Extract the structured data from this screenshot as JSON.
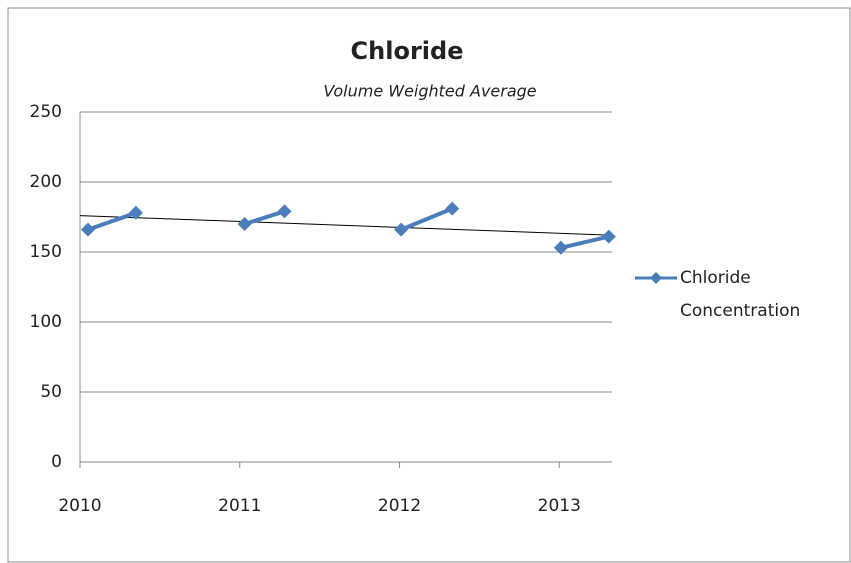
{
  "chart_data": {
    "type": "line",
    "title": "Chloride",
    "subtitle": "Volume Weighted Average",
    "x": [
      2010.05,
      2010.35,
      null,
      2011.03,
      2011.28,
      null,
      2012.01,
      2012.33,
      null,
      2013.01,
      2013.31
    ],
    "xlim": [
      2010,
      2013.33
    ],
    "xticks": [
      2010,
      2011,
      2012,
      2013
    ],
    "series": [
      {
        "name": "Chloride Concentration",
        "color": "#4a7ebb",
        "values": [
          166,
          178,
          null,
          170,
          179,
          null,
          166,
          181,
          null,
          153,
          161
        ]
      }
    ],
    "trendline": {
      "x": [
        2010,
        2013.33
      ],
      "values": [
        176,
        162
      ],
      "color": "#000000"
    },
    "ylim": [
      0,
      250
    ],
    "yticks": [
      0,
      50,
      100,
      150,
      200,
      250
    ],
    "grid": true,
    "legend": "right"
  }
}
